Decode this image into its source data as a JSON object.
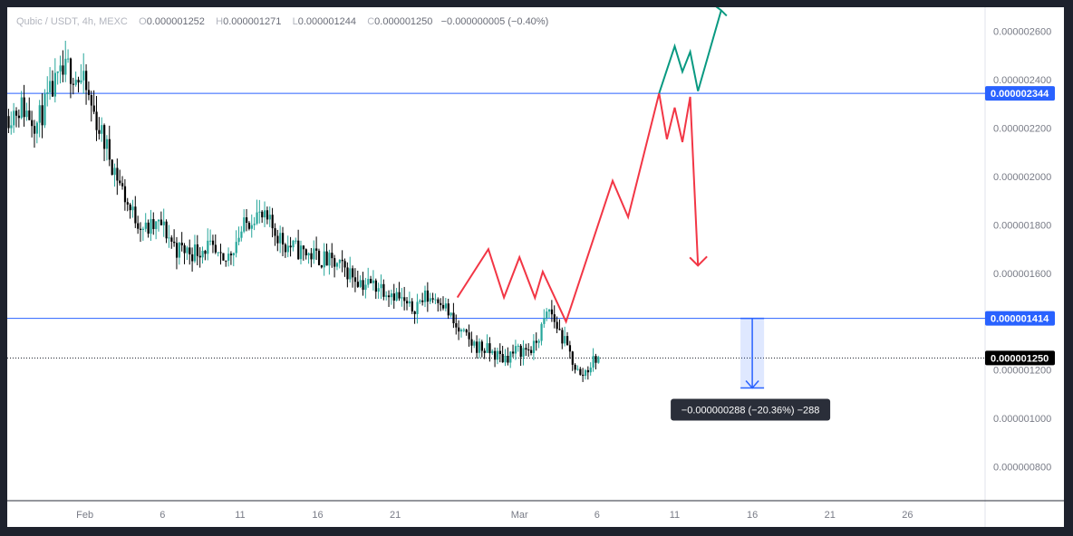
{
  "legend": {
    "symbol": "Qubic / USDT, 4h, MEXC",
    "o_label": "O",
    "o_value": "0.000001252",
    "h_label": "H",
    "h_value": "0.000001271",
    "l_label": "L",
    "l_value": "0.000001244",
    "c_label": "C",
    "c_value": "0.000001250",
    "change": "−0.000000005 (−0.40%)"
  },
  "colors": {
    "up": "#26a69a",
    "down": "#000000",
    "level_line": "#2962ff",
    "bull_path": "#089981",
    "bear_path": "#f23645",
    "axis_text": "#787b86",
    "tag_blue": "#2962ff",
    "tag_black": "#000000",
    "measure_fill": "#2962ff",
    "tooltip_bg": "#2a2e39"
  },
  "chart_data": {
    "type": "candlestick",
    "y_ticks": [
      {
        "value": 2.6e-06,
        "label": "0.000002600"
      },
      {
        "value": 2.4e-06,
        "label": "0.000002400"
      },
      {
        "value": 2.2e-06,
        "label": "0.000002200"
      },
      {
        "value": 2e-06,
        "label": "0.000002000"
      },
      {
        "value": 1.8e-06,
        "label": "0.000001800"
      },
      {
        "value": 1.6e-06,
        "label": "0.000001600"
      },
      {
        "value": 1.2e-06,
        "label": "0.000001200"
      },
      {
        "value": 1e-06,
        "label": "0.000001000"
      },
      {
        "value": 8e-07,
        "label": "0.000000800"
      }
    ],
    "ylim": [
      6.6e-07,
      2.7e-06
    ],
    "x_ticks": [
      {
        "date": "2025-02-01",
        "label": "Feb"
      },
      {
        "date": "2025-02-06",
        "label": "6"
      },
      {
        "date": "2025-02-11",
        "label": "11"
      },
      {
        "date": "2025-02-16",
        "label": "16"
      },
      {
        "date": "2025-02-21",
        "label": "21"
      },
      {
        "date": "2025-03-01",
        "label": "Mar"
      },
      {
        "date": "2025-03-06",
        "label": "6"
      },
      {
        "date": "2025-03-11",
        "label": "11"
      },
      {
        "date": "2025-03-16",
        "label": "16"
      },
      {
        "date": "2025-03-21",
        "label": "21"
      },
      {
        "date": "2025-03-26",
        "label": "26"
      }
    ],
    "xlim": [
      "2025-01-27",
      "2025-03-31"
    ],
    "price_path": [
      [
        "2025-01-27",
        2.25e-06
      ],
      [
        "2025-01-28",
        2.29e-06
      ],
      [
        "2025-01-29",
        2.22e-06
      ],
      [
        "2025-01-30",
        2.36e-06
      ],
      [
        "2025-01-31",
        2.45e-06
      ],
      [
        "2025-02-01",
        2.38e-06
      ],
      [
        "2025-02-02",
        2.2e-06
      ],
      [
        "2025-02-03",
        2.03e-06
      ],
      [
        "2025-02-04",
        1.86e-06
      ],
      [
        "2025-02-05",
        1.78e-06
      ],
      [
        "2025-02-06",
        1.8e-06
      ],
      [
        "2025-02-07",
        1.7e-06
      ],
      [
        "2025-02-08",
        1.69e-06
      ],
      [
        "2025-02-09",
        1.71e-06
      ],
      [
        "2025-02-10",
        1.63e-06
      ],
      [
        "2025-02-11",
        1.76e-06
      ],
      [
        "2025-02-12",
        1.85e-06
      ],
      [
        "2025-02-13",
        1.8e-06
      ],
      [
        "2025-02-14",
        1.72e-06
      ],
      [
        "2025-02-15",
        1.69e-06
      ],
      [
        "2025-02-16",
        1.67e-06
      ],
      [
        "2025-02-17",
        1.64e-06
      ],
      [
        "2025-02-18",
        1.61e-06
      ],
      [
        "2025-02-19",
        1.56e-06
      ],
      [
        "2025-02-20",
        1.55e-06
      ],
      [
        "2025-02-21",
        1.52e-06
      ],
      [
        "2025-02-22",
        1.45e-06
      ],
      [
        "2025-02-23",
        1.5e-06
      ],
      [
        "2025-02-24",
        1.5e-06
      ],
      [
        "2025-02-25",
        1.37e-06
      ],
      [
        "2025-02-26",
        1.31e-06
      ],
      [
        "2025-02-27",
        1.28e-06
      ],
      [
        "2025-02-28",
        1.25e-06
      ],
      [
        "2025-03-01",
        1.28e-06
      ],
      [
        "2025-03-02",
        1.29e-06
      ],
      [
        "2025-03-03",
        1.45e-06
      ],
      [
        "2025-03-04",
        1.31e-06
      ],
      [
        "2025-03-05",
        1.17e-06
      ],
      [
        "2025-03-06",
        1.25e-06
      ]
    ],
    "horizontal_levels": [
      {
        "value": 2.344e-06,
        "label": "0.000002344",
        "tag": "blue"
      },
      {
        "value": 1.414e-06,
        "label": "0.000001414",
        "tag": "blue"
      },
      {
        "value": 1.25e-06,
        "label": "0.000001250",
        "tag": "black",
        "dotted": true
      }
    ],
    "bear_path": [
      [
        "2025-02-25",
        1.5e-06
      ],
      [
        "2025-02-27",
        1.7e-06
      ],
      [
        "2025-02-28",
        1.5e-06
      ],
      [
        "2025-03-01",
        1.6666e-06
      ],
      [
        "2025-03-02",
        1.4984e-06
      ],
      [
        "2025-03-02 12:00",
        1.6066e-06
      ],
      [
        "2025-03-04",
        1.4e-06
      ],
      [
        "2025-03-07",
        1.9823e-06
      ],
      [
        "2025-03-08",
        1.8323e-06
      ],
      [
        "2025-03-10",
        2.344e-06
      ],
      [
        "2025-03-10 12:00",
        2.1547e-06
      ],
      [
        "2025-03-11",
        2.2848e-06
      ],
      [
        "2025-03-11 12:00",
        2.1428e-06
      ],
      [
        "2025-03-12",
        2.3297e-06
      ],
      [
        "2025-03-12 12:00",
        1.6319e-06
      ]
    ],
    "bull_path": [
      [
        "2025-03-10",
        2.344e-06
      ],
      [
        "2025-03-11",
        2.5385e-06
      ],
      [
        "2025-03-11 12:00",
        2.4335e-06
      ],
      [
        "2025-03-12",
        2.5154e-06
      ],
      [
        "2025-03-12 12:00",
        2.3534e-06
      ],
      [
        "2025-03-14",
        2.6871e-06
      ]
    ],
    "measure": {
      "date": "2025-03-16",
      "from": 1.414e-06,
      "to": 1.126e-06,
      "label": "−0.000000288 (−20.36%) −288"
    }
  }
}
